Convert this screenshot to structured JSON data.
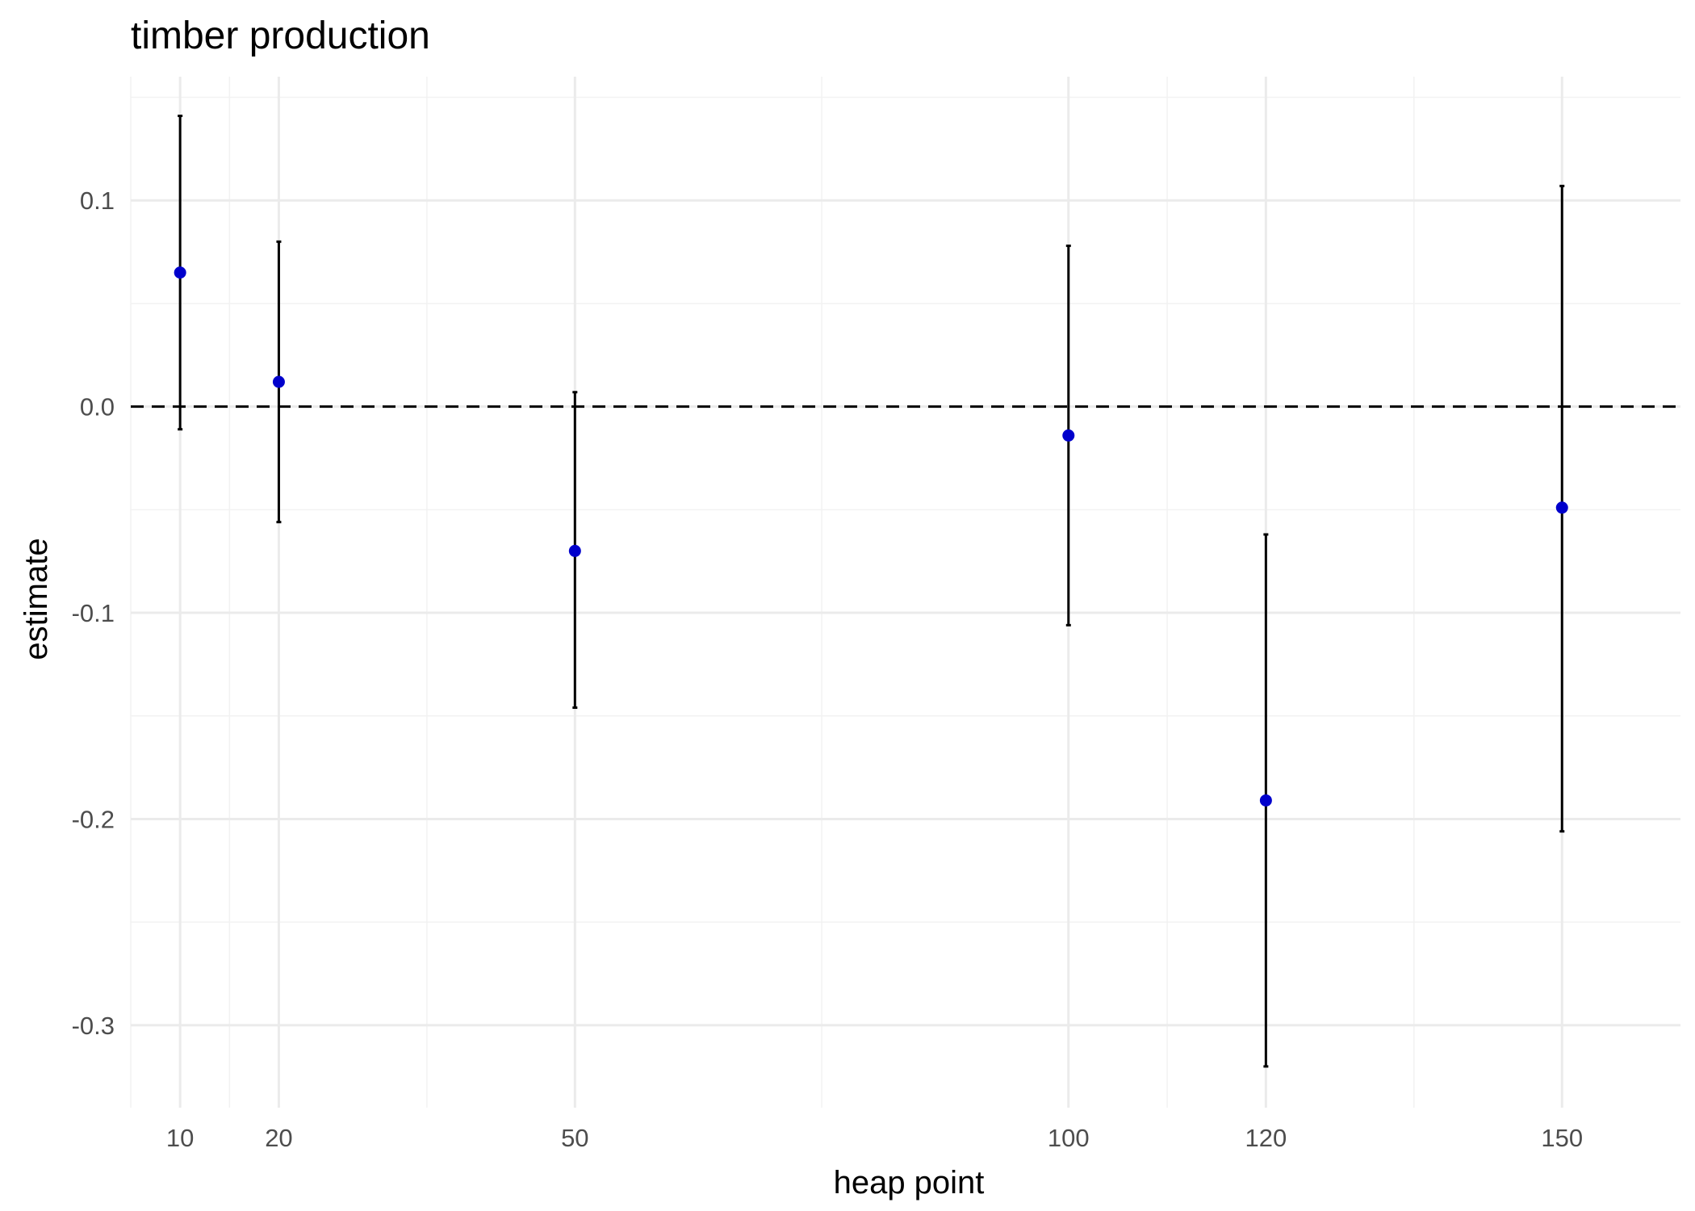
{
  "chart_data": {
    "type": "scatter",
    "subtype": "point-with-error-bars",
    "title": "timber production",
    "xlabel": "heap point",
    "ylabel": "estimate",
    "x_ticks": [
      10,
      20,
      50,
      100,
      120,
      150
    ],
    "y_ticks": [
      0.1,
      0.0,
      -0.1,
      -0.2,
      -0.3
    ],
    "y_tick_labels": [
      "0.1",
      "0.0",
      "-0.1",
      "-0.2",
      "-0.3"
    ],
    "xlim": [
      5,
      162
    ],
    "ylim": [
      -0.34,
      0.16
    ],
    "reference_line": {
      "y": 0.0,
      "style": "dashed"
    },
    "points": [
      {
        "x": 10,
        "estimate": 0.065,
        "lower": -0.011,
        "upper": 0.141
      },
      {
        "x": 20,
        "estimate": 0.012,
        "lower": -0.056,
        "upper": 0.08
      },
      {
        "x": 50,
        "estimate": -0.07,
        "lower": -0.146,
        "upper": 0.007
      },
      {
        "x": 100,
        "estimate": -0.014,
        "lower": -0.106,
        "upper": 0.078
      },
      {
        "x": 120,
        "estimate": -0.191,
        "lower": -0.32,
        "upper": -0.062
      },
      {
        "x": 150,
        "estimate": -0.049,
        "lower": -0.206,
        "upper": 0.107
      }
    ],
    "point_color": "#0000cc",
    "errorbar_color": "#000000",
    "grid": true,
    "legend": "none"
  }
}
